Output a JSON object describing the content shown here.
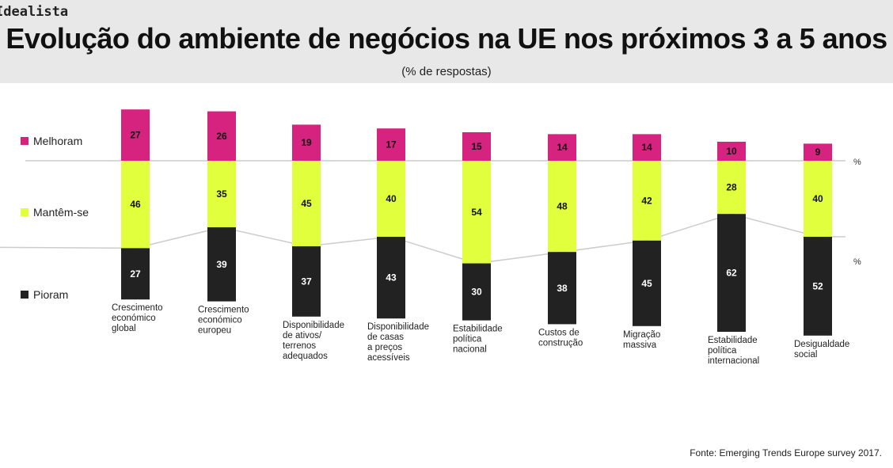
{
  "brand": "Idealista",
  "colors": {
    "melhoram": "#d6237f",
    "mantem": "#e2ff3d",
    "pioram": "#222222",
    "background_band": "#e8e8e8",
    "gridline": "#cccccc"
  },
  "chart_data": {
    "type": "bar",
    "stacked": true,
    "title": "Evolução do ambiente de negócios na UE nos próximos 3 a 5 anos",
    "subtitle": "(% de respostas)",
    "categories": [
      [
        "Crescimento",
        "económico",
        "global"
      ],
      [
        "Crescimento",
        "económico",
        "europeu"
      ],
      [
        "Disponibilidade",
        "de ativos/",
        "terrenos",
        "adequados"
      ],
      [
        "Disponibilidade",
        "de casas",
        "a preços",
        "acessíveis"
      ],
      [
        "Estabilidade",
        "política",
        "nacional"
      ],
      [
        "Custos de",
        "construção"
      ],
      [
        "Migração",
        "massiva"
      ],
      [
        "Estabilidade",
        "política",
        "internacional"
      ],
      [
        "Desigualdade",
        "social"
      ]
    ],
    "series": [
      {
        "name": "Melhoram",
        "values": [
          27,
          26,
          19,
          17,
          15,
          14,
          14,
          10,
          9
        ]
      },
      {
        "name": "Mantêm-se",
        "values": [
          46,
          35,
          45,
          40,
          54,
          48,
          42,
          28,
          40
        ]
      },
      {
        "name": "Pioram",
        "values": [
          27,
          39,
          37,
          43,
          30,
          38,
          45,
          62,
          52
        ]
      }
    ],
    "axis_markers": [
      "%",
      "%"
    ],
    "source": "Fonte: Emerging Trends Europe survey 2017."
  }
}
